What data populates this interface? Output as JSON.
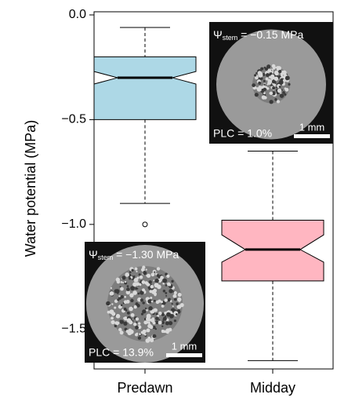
{
  "chart_data": {
    "type": "boxplot",
    "y_label": "Water potential (MPa)",
    "categories": [
      "Predawn",
      "Midday"
    ],
    "boxes": [
      {
        "whisker_low": -0.9,
        "q1": -0.5,
        "median": -0.3,
        "q3": -0.2,
        "whisker_high": -0.06,
        "notch_low": -0.33,
        "notch_high": -0.27,
        "outliers": [
          -1.0
        ],
        "color": "#add8e6"
      },
      {
        "whisker_low": -1.65,
        "q1": -1.27,
        "median": -1.12,
        "q3": -0.98,
        "whisker_high": -0.65,
        "notch_low": -1.18,
        "notch_high": -1.05,
        "outliers": [],
        "color": "#ffb6c1"
      }
    ],
    "ylim": [
      -1.69,
      0.015
    ],
    "yticks": [
      {
        "value": 0,
        "label": "0.0"
      },
      {
        "value": -0.5,
        "label": "−0.5"
      },
      {
        "value": -1.0,
        "label": "−1.0"
      },
      {
        "value": -1.5,
        "label": "−1.5"
      }
    ],
    "insets": [
      {
        "symbol": "Ψ",
        "subscript": "stem",
        "value_text": " = −0.15 MPa",
        "plc": "PLC = 1.0%",
        "scale_bar": "1 mm"
      },
      {
        "symbol": "Ψ",
        "subscript": "stem",
        "value_text": " = −1.30 MPa",
        "plc": "PLC = 13.9%",
        "scale_bar": "1 mm"
      }
    ]
  }
}
